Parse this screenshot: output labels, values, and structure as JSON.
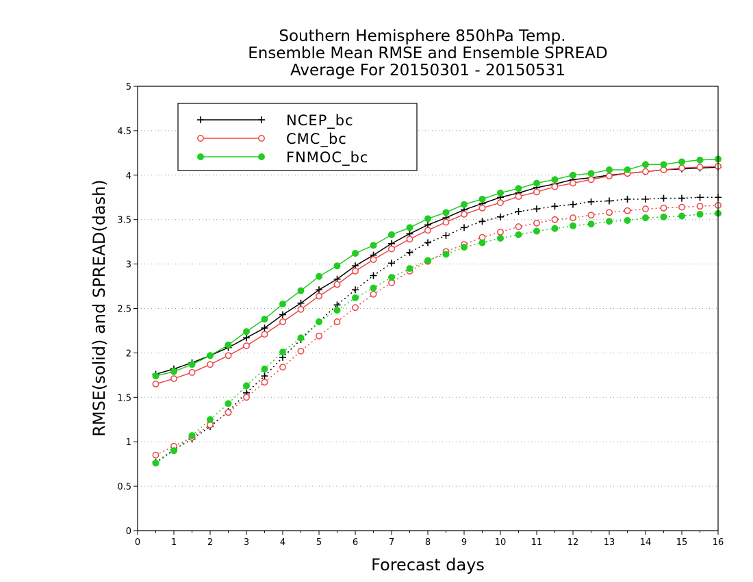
{
  "chart_data": {
    "type": "line",
    "title": [
      "Southern Hemisphere 850hPa Temp.",
      "Ensemble Mean RMSE and Ensemble SPREAD",
      "Average For 20150301 - 20150531"
    ],
    "xlabel": "Forecast days",
    "ylabel": "RMSE(solid) and SPREAD(dash)",
    "xlim": [
      0,
      16
    ],
    "ylim": [
      0,
      5
    ],
    "xticks": [
      "0",
      "1",
      "2",
      "3",
      "4",
      "5",
      "6",
      "7",
      "8",
      "9",
      "10",
      "11",
      "12",
      "13",
      "14",
      "15",
      "16"
    ],
    "yticks": [
      "0",
      "0.5",
      "1",
      "1.5",
      "2",
      "2.5",
      "3",
      "3.5",
      "4",
      "4.5",
      "5"
    ],
    "grid": true,
    "legend_position": "top-left",
    "x": [
      0.5,
      1,
      1.5,
      2,
      2.5,
      3,
      3.5,
      4,
      4.5,
      5,
      5.5,
      6,
      6.5,
      7,
      7.5,
      8,
      8.5,
      9,
      9.5,
      10,
      10.5,
      11,
      11.5,
      12,
      12.5,
      13,
      13.5,
      14,
      14.5,
      15,
      15.5,
      16
    ],
    "series": [
      {
        "name": "NCEP_bc",
        "metric": "RMSE",
        "line": "solid",
        "marker": "plus",
        "color": "#000000",
        "values": [
          1.76,
          1.82,
          1.89,
          1.97,
          2.06,
          2.17,
          2.28,
          2.43,
          2.56,
          2.71,
          2.83,
          2.98,
          3.1,
          3.23,
          3.34,
          3.44,
          3.52,
          3.61,
          3.68,
          3.75,
          3.8,
          3.86,
          3.9,
          3.95,
          3.97,
          4.0,
          4.02,
          4.04,
          4.06,
          4.07,
          4.08,
          4.09
        ]
      },
      {
        "name": "CMC_bc",
        "metric": "RMSE",
        "line": "solid",
        "marker": "open-circle",
        "color": "#ee4444",
        "values": [
          1.65,
          1.71,
          1.78,
          1.87,
          1.97,
          2.08,
          2.21,
          2.35,
          2.49,
          2.64,
          2.77,
          2.92,
          3.05,
          3.17,
          3.28,
          3.38,
          3.47,
          3.56,
          3.63,
          3.69,
          3.76,
          3.81,
          3.87,
          3.91,
          3.95,
          3.99,
          4.02,
          4.04,
          4.06,
          4.08,
          4.09,
          4.1
        ]
      },
      {
        "name": "FNMOC_bc",
        "metric": "RMSE",
        "line": "solid",
        "marker": "filled-circle",
        "color": "#22cc22",
        "values": [
          1.74,
          1.79,
          1.87,
          1.97,
          2.09,
          2.24,
          2.38,
          2.55,
          2.7,
          2.86,
          2.98,
          3.12,
          3.21,
          3.33,
          3.41,
          3.51,
          3.58,
          3.67,
          3.73,
          3.8,
          3.85,
          3.91,
          3.95,
          4.0,
          4.02,
          4.06,
          4.06,
          4.12,
          4.12,
          4.15,
          4.17,
          4.18
        ]
      },
      {
        "name": "NCEP_bc",
        "metric": "SPREAD",
        "line": "dash",
        "marker": "plus",
        "color": "#000000",
        "values": [
          0.77,
          0.91,
          1.03,
          1.17,
          1.34,
          1.55,
          1.74,
          1.95,
          2.15,
          2.35,
          2.54,
          2.71,
          2.87,
          3.01,
          3.13,
          3.24,
          3.32,
          3.41,
          3.48,
          3.53,
          3.59,
          3.62,
          3.65,
          3.67,
          3.7,
          3.71,
          3.73,
          3.73,
          3.74,
          3.74,
          3.75,
          3.75
        ]
      },
      {
        "name": "CMC_bc",
        "metric": "SPREAD",
        "line": "dash",
        "marker": "open-circle",
        "color": "#ee4444",
        "values": [
          0.85,
          0.95,
          1.05,
          1.19,
          1.33,
          1.5,
          1.67,
          1.84,
          2.02,
          2.19,
          2.35,
          2.51,
          2.66,
          2.79,
          2.92,
          3.03,
          3.14,
          3.22,
          3.3,
          3.36,
          3.42,
          3.46,
          3.5,
          3.52,
          3.55,
          3.58,
          3.6,
          3.62,
          3.63,
          3.64,
          3.65,
          3.66
        ]
      },
      {
        "name": "FNMOC_bc",
        "metric": "SPREAD",
        "line": "dash",
        "marker": "filled-circle",
        "color": "#22cc22",
        "values": [
          0.76,
          0.9,
          1.07,
          1.25,
          1.43,
          1.63,
          1.82,
          2.01,
          2.17,
          2.35,
          2.48,
          2.62,
          2.73,
          2.85,
          2.95,
          3.04,
          3.11,
          3.19,
          3.24,
          3.29,
          3.33,
          3.37,
          3.4,
          3.43,
          3.45,
          3.48,
          3.49,
          3.52,
          3.53,
          3.54,
          3.56,
          3.57
        ]
      }
    ]
  }
}
